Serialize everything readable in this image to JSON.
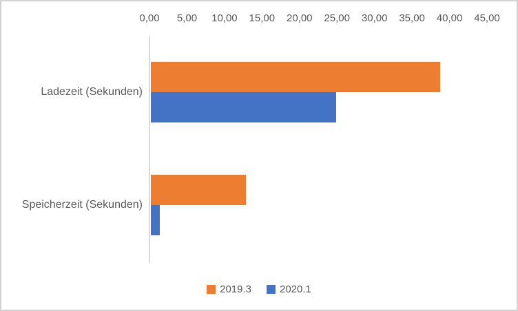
{
  "chart_data": {
    "type": "bar",
    "orientation": "horizontal",
    "title": "",
    "categories": [
      "Ladezeit (Sekunden)",
      "Speicherzeit (Sekunden)"
    ],
    "series": [
      {
        "name": "2019.3",
        "color": "#ED7D31",
        "values": [
          38.8,
          12.9
        ]
      },
      {
        "name": "2020.1",
        "color": "#4472C4",
        "values": [
          24.9,
          1.4
        ]
      }
    ],
    "xlim": [
      0,
      45
    ],
    "xtick_values": [
      0,
      5,
      10,
      15,
      20,
      25,
      30,
      35,
      40,
      45
    ],
    "xtick_labels": [
      "0,00",
      "5,00",
      "10,00",
      "15,00",
      "20,00",
      "25,00",
      "30,00",
      "35,00",
      "40,00",
      "45,00"
    ],
    "x_axis_position": "top",
    "legend_position": "bottom",
    "grid": false,
    "colors": {
      "axis_line": "#D9D9D9",
      "text": "#595959",
      "border": "#D2D2D2",
      "background": "#FFFFFF"
    }
  }
}
